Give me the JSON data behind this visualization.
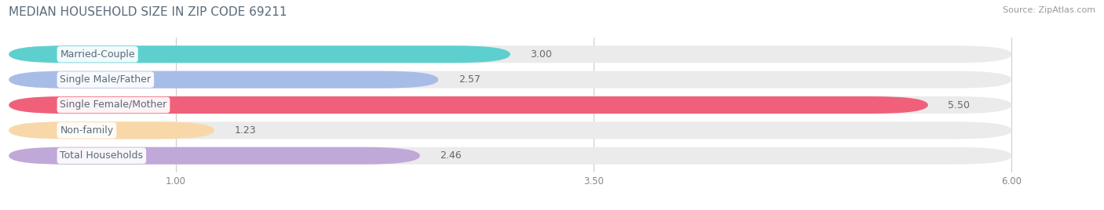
{
  "title": "MEDIAN HOUSEHOLD SIZE IN ZIP CODE 69211",
  "source": "Source: ZipAtlas.com",
  "categories": [
    "Married-Couple",
    "Single Male/Father",
    "Single Female/Mother",
    "Non-family",
    "Total Households"
  ],
  "values": [
    3.0,
    2.57,
    5.5,
    1.23,
    2.46
  ],
  "bar_colors": [
    "#5ecfcf",
    "#a8bce8",
    "#f0607a",
    "#f8d8a8",
    "#c0a8d8"
  ],
  "bar_bg_color": "#ebebeb",
  "background_color": "#ffffff",
  "xticks": [
    1.0,
    3.5,
    6.0
  ],
  "xdata_min": 0.0,
  "xdata_max": 6.0,
  "value_labels": [
    "3.00",
    "2.57",
    "5.50",
    "1.23",
    "2.46"
  ],
  "title_color": "#5a6a7a",
  "label_color": "#5a6a7a",
  "value_color": "#666666",
  "source_color": "#999999",
  "title_fontsize": 11,
  "label_fontsize": 9,
  "value_fontsize": 9,
  "source_fontsize": 8
}
